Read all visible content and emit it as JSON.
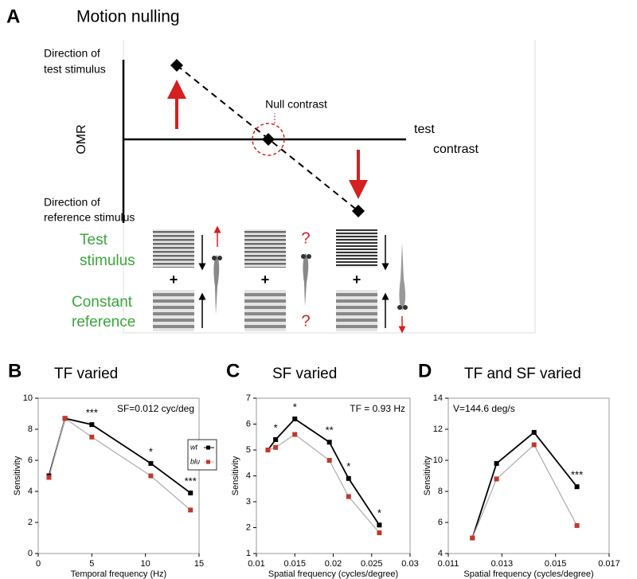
{
  "diagram": {
    "panel_label": "A",
    "title": "Motion nulling",
    "test_direction": [
      "Direction of",
      "test stimulus"
    ],
    "y_axis": "OMR",
    "null_label": "Null contrast",
    "x_axis": [
      "test",
      "contrast"
    ],
    "reference_direction": [
      "Direction of",
      "reference stimulus"
    ],
    "test_stimulus": [
      "Test",
      "stimulus"
    ],
    "constant_reference": [
      "Constant",
      "reference"
    ],
    "plus": "+",
    "question": "?"
  },
  "chart_data": [
    {
      "panel_label": "B",
      "type": "line",
      "title": "TF varied",
      "annotation": "SF=0.012 cyc/deg",
      "annotation_corner": "upper right",
      "x_label": "Temporal frequency (Hz)",
      "y_label": "Sensitivity",
      "x": [
        1,
        2.5,
        5,
        10.5,
        14.2
      ],
      "xlim": [
        0,
        15
      ],
      "xticks": [
        0,
        5,
        10,
        15
      ],
      "ylim": [
        0,
        10
      ],
      "yticks": [
        0,
        2,
        4,
        6,
        8,
        10
      ],
      "series": [
        {
          "name": "wt",
          "color": "#000000",
          "line_color": "#000000",
          "values": [
            5.0,
            8.7,
            8.3,
            5.8,
            3.9
          ]
        },
        {
          "name": "blu",
          "color": "#c0392b",
          "line_color": "#b0b0b0",
          "values": [
            4.9,
            8.7,
            7.5,
            5.0,
            2.8
          ]
        }
      ],
      "significance": [
        null,
        null,
        "***",
        "*",
        "***"
      ],
      "legend": "outside right"
    },
    {
      "panel_label": "C",
      "type": "line",
      "title": "SF varied",
      "annotation": "TF = 0.93 Hz",
      "annotation_corner": "upper right",
      "x_label": "Spatial frequency (cycles/degree)",
      "y_label": "Sensitivity",
      "x": [
        0.0115,
        0.0125,
        0.015,
        0.0195,
        0.022,
        0.026
      ],
      "xlim": [
        0.01,
        0.03
      ],
      "xticks": [
        0.01,
        0.015,
        0.02,
        0.025,
        0.03
      ],
      "ylim": [
        1,
        7
      ],
      "yticks": [
        1,
        2,
        3,
        4,
        5,
        6,
        7
      ],
      "series": [
        {
          "name": "wt",
          "color": "#000000",
          "line_color": "#000000",
          "values": [
            5.0,
            5.4,
            6.2,
            5.3,
            3.9,
            2.1
          ]
        },
        {
          "name": "blu",
          "color": "#c0392b",
          "line_color": "#b0b0b0",
          "values": [
            5.0,
            5.1,
            5.6,
            4.6,
            3.2,
            1.8
          ]
        }
      ],
      "significance": [
        null,
        "*",
        "*",
        "**",
        "*",
        "*"
      ],
      "legend": false
    },
    {
      "panel_label": "D",
      "type": "line",
      "title": "TF and SF varied",
      "annotation": "V=144.6 deg/s",
      "annotation_corner": "upper left",
      "x_label": "Spatial frequency (cycles/degree)",
      "y_label": "Sensitivity",
      "x": [
        0.0119,
        0.0128,
        0.0142,
        0.0158
      ],
      "xlim": [
        0.011,
        0.017
      ],
      "xticks": [
        0.011,
        0.013,
        0.015,
        0.017
      ],
      "ylim": [
        4,
        14
      ],
      "yticks": [
        4,
        6,
        8,
        10,
        12,
        14
      ],
      "series": [
        {
          "name": "wt",
          "color": "#000000",
          "line_color": "#000000",
          "values": [
            5.0,
            9.8,
            11.8,
            8.3
          ]
        },
        {
          "name": "blu",
          "color": "#c0392b",
          "line_color": "#b0b0b0",
          "values": [
            5.0,
            8.8,
            11.0,
            5.8
          ]
        }
      ],
      "significance": [
        null,
        null,
        null,
        "***"
      ],
      "legend": false
    }
  ]
}
